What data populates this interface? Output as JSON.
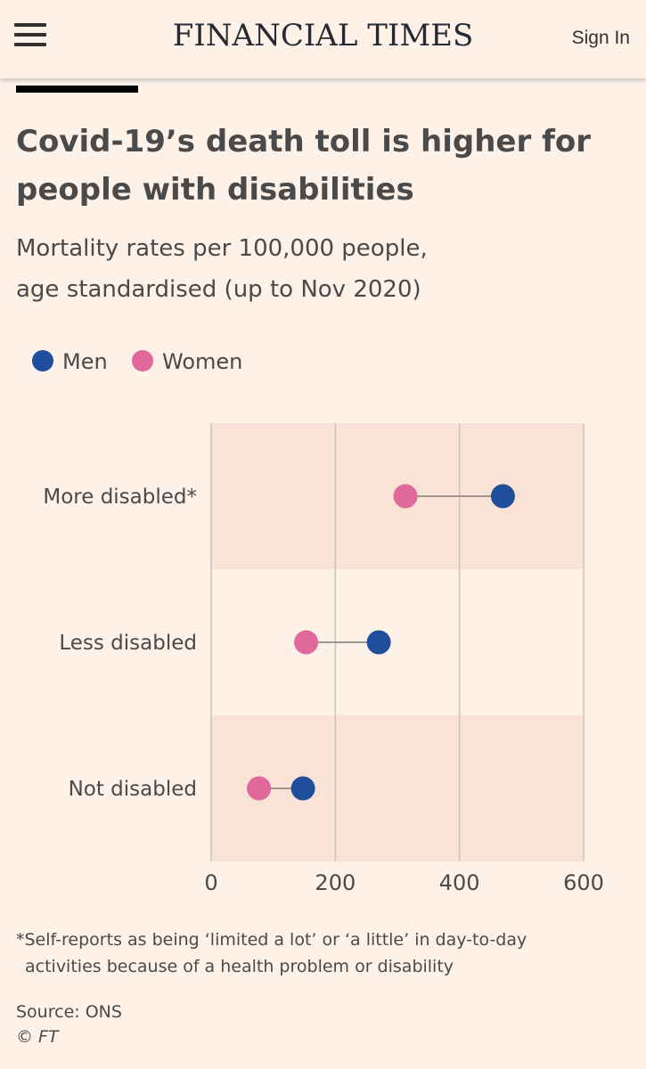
{
  "header": {
    "brand": "FINANCIAL TIMES",
    "signin_label": "Sign In",
    "menu_icon": "hamburger-menu-icon"
  },
  "chart_data": {
    "type": "dumbbell",
    "title": "Covid-19’s death toll is higher for people with disabilities",
    "subtitle_line1": "Mortality rates per 100,000 people,",
    "subtitle_line2": "age standardised (up to Nov 2020)",
    "categories": [
      "More disabled*",
      "Less disabled",
      "Not disabled"
    ],
    "series": [
      {
        "name": "Men",
        "color": "#1f4e9c",
        "values": [
          470,
          270,
          148
        ]
      },
      {
        "name": "Women",
        "color": "#e0689a",
        "values": [
          313,
          153,
          77
        ]
      }
    ],
    "x_ticks": [
      "0",
      "200",
      "400",
      "600"
    ],
    "xlim": [
      0,
      600
    ],
    "grid": true,
    "legend_position": "top-left",
    "band_color": "#f9e2d6",
    "connector_color": "#9e9690",
    "footnote_line1": "*Self-reports as being ‘limited a lot’ or ‘a little’ in day-to-day",
    "footnote_line2": "activities because of a health problem or disability",
    "source": "Source: ONS",
    "copyright": "© FT"
  }
}
